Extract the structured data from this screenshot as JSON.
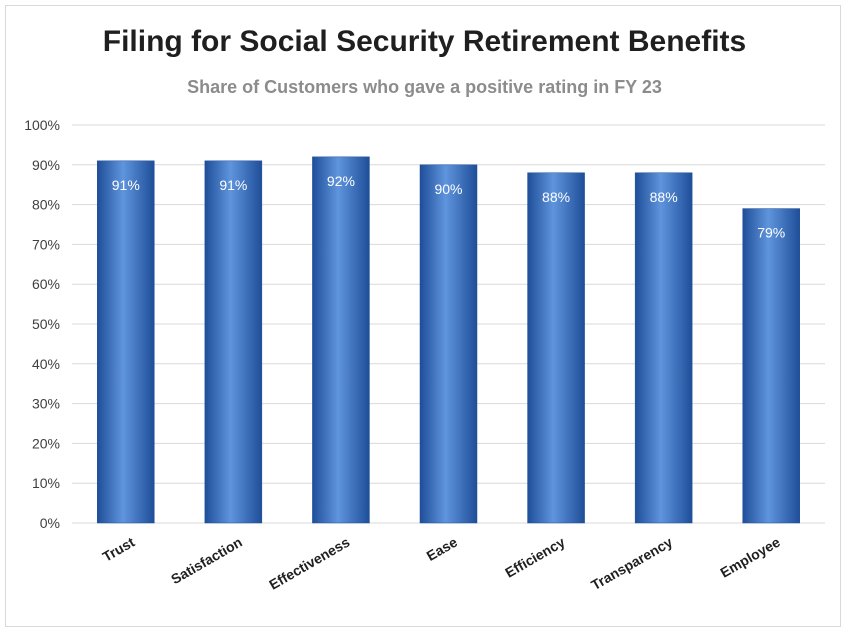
{
  "chart_data": {
    "type": "bar",
    "title": "Filing for Social Security Retirement Benefits",
    "subtitle": "Share of Customers who gave a positive rating in FY 23",
    "categories": [
      "Trust",
      "Satisfaction",
      "Effectiveness",
      "Ease",
      "Efficiency",
      "Transparency",
      "Employee"
    ],
    "values": [
      91,
      91,
      92,
      90,
      88,
      88,
      79
    ],
    "data_labels": [
      "91%",
      "91%",
      "92%",
      "90%",
      "88%",
      "88%",
      "79%"
    ],
    "y_ticks": [
      "0%",
      "10%",
      "20%",
      "30%",
      "40%",
      "50%",
      "60%",
      "70%",
      "80%",
      "90%",
      "100%"
    ],
    "ylim": [
      0,
      100
    ],
    "xlabel": "",
    "ylabel": "",
    "grid": true,
    "legend": "none",
    "colors": {
      "bar": "#3b74c6",
      "bar_dark": "#1f4e99",
      "bar_light": "#5f95dd",
      "grid": "#d9d9d9",
      "label": "#ffffff",
      "axis_text": "#404040"
    }
  }
}
